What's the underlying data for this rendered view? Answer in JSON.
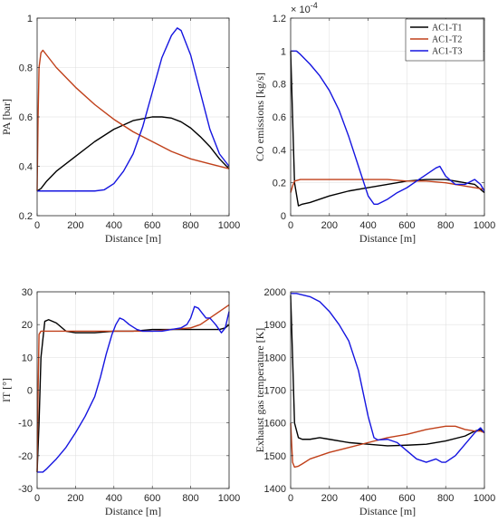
{
  "chart_data": [
    {
      "id": "pa",
      "type": "line",
      "xlabel": "Distance [m]",
      "ylabel": "PA [bar]",
      "xlim": [
        0,
        1000
      ],
      "ylim": [
        0.2,
        1.0
      ],
      "xticks": [
        "0",
        "200",
        "400",
        "600",
        "800",
        "1000"
      ],
      "xtick_values": [
        0,
        200,
        400,
        600,
        800,
        1000
      ],
      "yticks": [
        "0.2",
        "0.4",
        "0.6",
        "0.8",
        "1"
      ],
      "ytick_values": [
        0.2,
        0.4,
        0.6,
        0.8,
        1.0
      ],
      "grid": true,
      "series": [
        {
          "name": "AC1-T1",
          "color": "#000000",
          "x": [
            0,
            20,
            50,
            100,
            200,
            300,
            400,
            500,
            600,
            650,
            700,
            750,
            800,
            850,
            900,
            950,
            1000
          ],
          "y": [
            0.3,
            0.31,
            0.34,
            0.38,
            0.44,
            0.5,
            0.55,
            0.585,
            0.6,
            0.6,
            0.595,
            0.58,
            0.555,
            0.52,
            0.48,
            0.43,
            0.39
          ]
        },
        {
          "name": "AC1-T2",
          "color": "#c0401a",
          "x": [
            0,
            5,
            10,
            20,
            30,
            50,
            100,
            200,
            300,
            400,
            500,
            600,
            700,
            800,
            900,
            1000
          ],
          "y": [
            0.3,
            0.6,
            0.8,
            0.86,
            0.87,
            0.85,
            0.8,
            0.72,
            0.65,
            0.59,
            0.54,
            0.5,
            0.46,
            0.43,
            0.41,
            0.39
          ]
        },
        {
          "name": "AC1-T3",
          "color": "#1515e0",
          "x": [
            0,
            50,
            100,
            200,
            300,
            350,
            400,
            450,
            500,
            550,
            600,
            650,
            700,
            730,
            750,
            800,
            850,
            900,
            950,
            1000
          ],
          "y": [
            0.3,
            0.3,
            0.3,
            0.3,
            0.3,
            0.305,
            0.33,
            0.38,
            0.45,
            0.56,
            0.7,
            0.84,
            0.93,
            0.96,
            0.95,
            0.85,
            0.7,
            0.55,
            0.45,
            0.4
          ]
        }
      ]
    },
    {
      "id": "co",
      "type": "line",
      "xlabel": "Distance [m]",
      "ylabel": "CO emissions [kg/s]",
      "exponent_label": "× 10^-4",
      "xlim": [
        0,
        1000
      ],
      "ylim": [
        0,
        1.2
      ],
      "xticks": [
        "0",
        "200",
        "400",
        "600",
        "800",
        "1000"
      ],
      "xtick_values": [
        0,
        200,
        400,
        600,
        800,
        1000
      ],
      "yticks": [
        "0",
        "0.2",
        "0.4",
        "0.6",
        "0.8",
        "1",
        "1.2"
      ],
      "ytick_values": [
        0,
        0.2,
        0.4,
        0.6,
        0.8,
        1.0,
        1.2
      ],
      "grid": true,
      "legend": {
        "position": "top-right",
        "entries": [
          "AC1-T1",
          "AC1-T2",
          "AC1-T3"
        ]
      },
      "series": [
        {
          "name": "AC1-T1",
          "color": "#000000",
          "x": [
            0,
            10,
            20,
            40,
            60,
            100,
            200,
            300,
            400,
            500,
            600,
            700,
            800,
            900,
            950,
            1000
          ],
          "y": [
            1.0,
            0.6,
            0.2,
            0.06,
            0.07,
            0.08,
            0.12,
            0.15,
            0.17,
            0.19,
            0.21,
            0.22,
            0.22,
            0.2,
            0.19,
            0.14
          ]
        },
        {
          "name": "AC1-T2",
          "color": "#c0401a",
          "x": [
            0,
            10,
            20,
            50,
            100,
            200,
            300,
            400,
            500,
            600,
            700,
            800,
            900,
            950,
            1000
          ],
          "y": [
            0.14,
            0.18,
            0.21,
            0.22,
            0.22,
            0.22,
            0.22,
            0.22,
            0.22,
            0.21,
            0.21,
            0.2,
            0.18,
            0.17,
            0.16
          ]
        },
        {
          "name": "AC1-T3",
          "color": "#1515e0",
          "x": [
            0,
            30,
            50,
            100,
            150,
            200,
            250,
            300,
            350,
            400,
            430,
            450,
            500,
            550,
            600,
            650,
            700,
            750,
            770,
            800,
            850,
            900,
            950,
            980,
            1000
          ],
          "y": [
            1.0,
            1.0,
            0.98,
            0.92,
            0.85,
            0.76,
            0.64,
            0.48,
            0.3,
            0.12,
            0.07,
            0.07,
            0.1,
            0.14,
            0.17,
            0.21,
            0.25,
            0.29,
            0.3,
            0.24,
            0.19,
            0.19,
            0.22,
            0.19,
            0.15
          ]
        }
      ]
    },
    {
      "id": "it",
      "type": "line",
      "xlabel": "Distance [m]",
      "ylabel": "IT [°]",
      "xlim": [
        0,
        1000
      ],
      "ylim": [
        -30,
        30
      ],
      "xticks": [
        "0",
        "200",
        "400",
        "600",
        "800",
        "1000"
      ],
      "xtick_values": [
        0,
        200,
        400,
        600,
        800,
        1000
      ],
      "yticks": [
        "-30",
        "-20",
        "-10",
        "0",
        "10",
        "20",
        "30"
      ],
      "ytick_values": [
        -30,
        -20,
        -10,
        0,
        10,
        20,
        30
      ],
      "grid": true,
      "series": [
        {
          "name": "AC1-T1",
          "color": "#000000",
          "x": [
            0,
            10,
            20,
            40,
            60,
            100,
            150,
            200,
            300,
            400,
            500,
            600,
            700,
            800,
            900,
            950,
            980,
            1000
          ],
          "y": [
            -25,
            -10,
            10,
            21,
            21.5,
            20.5,
            18,
            17.5,
            17.5,
            18,
            18,
            18.5,
            18.5,
            18.5,
            18.5,
            18.5,
            19,
            20
          ]
        },
        {
          "name": "AC1-T2",
          "color": "#c0401a",
          "x": [
            0,
            5,
            10,
            20,
            50,
            100,
            200,
            300,
            400,
            500,
            600,
            700,
            800,
            850,
            900,
            950,
            1000
          ],
          "y": [
            -25,
            0,
            17,
            18,
            18,
            18,
            18,
            18,
            18,
            18,
            18,
            18.5,
            19,
            20,
            22,
            24,
            26
          ]
        },
        {
          "name": "AC1-T3",
          "color": "#1515e0",
          "x": [
            0,
            30,
            50,
            100,
            150,
            200,
            250,
            300,
            330,
            360,
            390,
            410,
            430,
            450,
            480,
            520,
            550,
            600,
            650,
            700,
            750,
            780,
            800,
            820,
            840,
            860,
            880,
            900,
            930,
            960,
            980,
            1000
          ],
          "y": [
            -25,
            -25,
            -24,
            -21,
            -17.5,
            -13,
            -8,
            -2,
            4,
            11,
            17,
            20,
            22,
            21.5,
            20,
            18.5,
            18,
            18,
            18,
            18.5,
            19,
            20,
            22,
            25.5,
            25,
            23.5,
            22,
            22,
            20,
            17.5,
            19,
            24
          ]
        }
      ]
    },
    {
      "id": "egt",
      "type": "line",
      "xlabel": "Distance [m]",
      "ylabel": "Exhaust gas temperature [K]",
      "xlim": [
        0,
        1000
      ],
      "ylim": [
        1400,
        2000
      ],
      "xticks": [
        "0",
        "200",
        "400",
        "600",
        "800",
        "1000"
      ],
      "xtick_values": [
        0,
        200,
        400,
        600,
        800,
        1000
      ],
      "yticks": [
        "1400",
        "1500",
        "1600",
        "1700",
        "1800",
        "1900",
        "2000"
      ],
      "ytick_values": [
        1400,
        1500,
        1600,
        1700,
        1800,
        1900,
        2000
      ],
      "grid": true,
      "series": [
        {
          "name": "AC1-T1",
          "color": "#000000",
          "x": [
            0,
            10,
            20,
            40,
            60,
            100,
            150,
            200,
            300,
            400,
            500,
            600,
            700,
            800,
            900,
            950,
            980,
            1000
          ],
          "y": [
            1990,
            1800,
            1600,
            1555,
            1550,
            1550,
            1555,
            1550,
            1540,
            1535,
            1530,
            1532,
            1535,
            1545,
            1560,
            1575,
            1580,
            1570
          ]
        },
        {
          "name": "AC1-T2",
          "color": "#c0401a",
          "x": [
            0,
            10,
            20,
            40,
            60,
            100,
            200,
            300,
            400,
            500,
            600,
            700,
            800,
            850,
            900,
            950,
            980,
            1000
          ],
          "y": [
            1600,
            1480,
            1465,
            1468,
            1475,
            1490,
            1510,
            1525,
            1540,
            1555,
            1565,
            1580,
            1590,
            1590,
            1580,
            1575,
            1575,
            1570
          ]
        },
        {
          "name": "AC1-T3",
          "color": "#1515e0",
          "x": [
            0,
            30,
            100,
            150,
            200,
            250,
            300,
            350,
            400,
            430,
            450,
            500,
            550,
            600,
            650,
            700,
            750,
            780,
            800,
            850,
            900,
            950,
            980,
            1000
          ],
          "y": [
            1995,
            1995,
            1985,
            1970,
            1940,
            1900,
            1850,
            1760,
            1620,
            1555,
            1548,
            1550,
            1540,
            1515,
            1490,
            1480,
            1490,
            1480,
            1480,
            1500,
            1535,
            1570,
            1585,
            1570
          ]
        }
      ]
    }
  ]
}
